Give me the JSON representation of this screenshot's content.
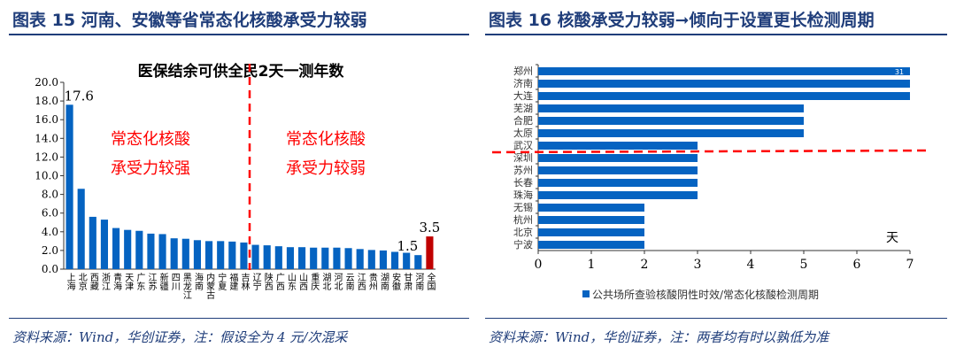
{
  "left": {
    "header": "图表 15   河南、安徽等省常态化核酸承受力较弱",
    "source": "资料来源：Wind，华创证券，注：假设全为 4 元/次混采"
  },
  "right": {
    "header": "图表 16   核酸承受力较弱➞倾向于设置更长检测周期",
    "source": "资料来源：Wind，华创证券，注：两者均有时以孰低为准"
  },
  "chart_data": [
    {
      "type": "bar",
      "title": "医保结余可供全民2天一测年数",
      "categories": [
        "上海",
        "北京",
        "西藏",
        "浙江",
        "青海",
        "天津",
        "广东",
        "江苏",
        "新疆",
        "四川",
        "黑龙江",
        "海南",
        "内蒙古",
        "宁夏",
        "福建",
        "吉林",
        "辽宁",
        "陕西",
        "广西",
        "山东",
        "山西",
        "重庆",
        "湖北",
        "河北",
        "云南",
        "江西",
        "贵州",
        "湖南",
        "安徽",
        "甘肃",
        "河南",
        "全国"
      ],
      "values": [
        17.6,
        8.6,
        5.6,
        5.3,
        4.4,
        4.2,
        4.1,
        3.8,
        3.75,
        3.3,
        3.25,
        3.1,
        3.0,
        3.0,
        2.95,
        2.85,
        2.6,
        2.55,
        2.45,
        2.35,
        2.35,
        2.3,
        2.3,
        2.3,
        2.25,
        2.15,
        2.05,
        2.0,
        1.85,
        1.75,
        1.5,
        3.5
      ],
      "data_labels": {
        "上海": "17.6",
        "河南": "1.5",
        "全国": "3.5"
      },
      "ylim": [
        0,
        20
      ],
      "yticks": [
        "0.0",
        "2.0",
        "4.0",
        "6.0",
        "8.0",
        "10.0",
        "12.0",
        "14.0",
        "16.0",
        "18.0",
        "20.0"
      ],
      "bar_color": "#0563c1",
      "highlight_color": "#c00000",
      "divider_after": "吉林",
      "annotations": [
        {
          "lines": [
            "常态化核酸",
            "承受力较强"
          ],
          "color": "#ff0000"
        },
        {
          "lines": [
            "常态化核酸",
            "承受力较弱"
          ],
          "color": "#ff0000"
        }
      ],
      "grid": false
    },
    {
      "type": "bar",
      "orientation": "horizontal",
      "categories": [
        "郑州",
        "济南",
        "大连",
        "芜湖",
        "合肥",
        "太原",
        "武汉",
        "深圳",
        "苏州",
        "长春",
        "珠海",
        "无锡",
        "杭州",
        "北京",
        "宁波"
      ],
      "values": [
        7,
        7,
        7,
        5,
        5,
        5,
        3,
        3,
        3,
        3,
        3,
        2,
        2,
        2,
        2
      ],
      "extra_label": {
        "category": "郑州",
        "text": "31"
      },
      "xlim": [
        0,
        7
      ],
      "xticks": [
        "0",
        "1",
        "2",
        "3",
        "4",
        "5",
        "6",
        "7"
      ],
      "unit": "天",
      "legend": "公共场所查验核酸阴性时效/常态化核酸检测周期",
      "legend_placement": "bottom",
      "bar_color": "#0563c1",
      "divider_after": "武汉",
      "grid": false
    }
  ]
}
